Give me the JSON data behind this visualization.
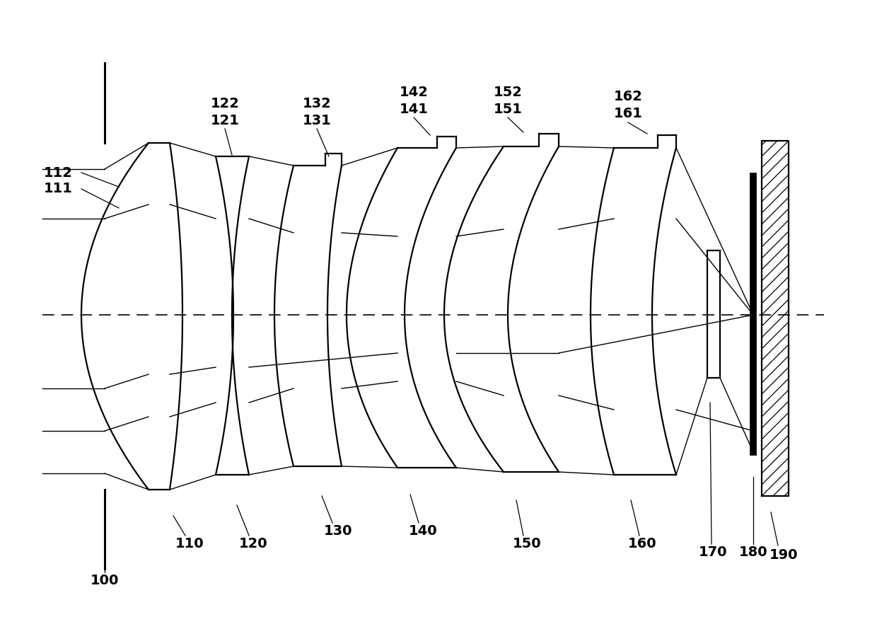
{
  "background_color": "#ffffff",
  "line_color": "#000000",
  "lw": 1.6,
  "ray_lw": 1.0,
  "label_fontsize": 14,
  "figsize": [
    12.4,
    8.89
  ],
  "dpi": 100
}
